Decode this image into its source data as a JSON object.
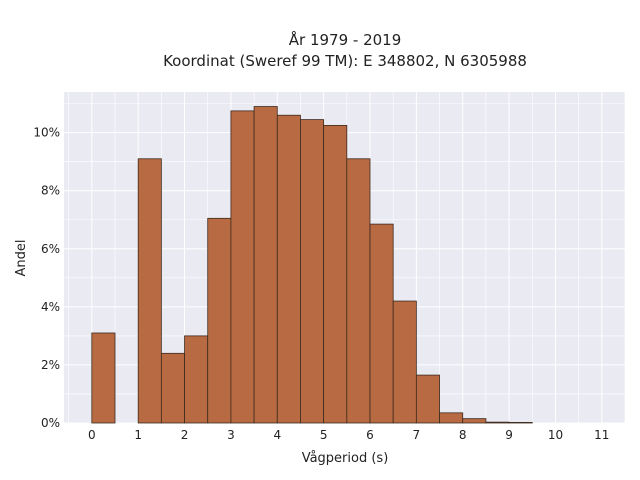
{
  "chart_data": {
    "type": "bar",
    "title_line1": "År 1979 - 2019",
    "title_line2": "Koordinat (Sweref 99 TM): E 348802, N 6305988",
    "xlabel": "Vågperiod (s)",
    "ylabel": "Andel",
    "xlim": [
      -0.6,
      11.5
    ],
    "ylim": [
      0,
      11.4
    ],
    "bin_width": 0.5,
    "xticks": [
      0,
      1,
      2,
      3,
      4,
      5,
      6,
      7,
      8,
      9,
      10,
      11
    ],
    "yticks": [
      0,
      2,
      4,
      6,
      8,
      10
    ],
    "ytick_suffix": "%",
    "bins": [
      {
        "x0": 0.0,
        "value": 3.1
      },
      {
        "x0": 0.5,
        "value": 0.0
      },
      {
        "x0": 1.0,
        "value": 9.1
      },
      {
        "x0": 1.5,
        "value": 2.4
      },
      {
        "x0": 2.0,
        "value": 3.0
      },
      {
        "x0": 2.5,
        "value": 7.05
      },
      {
        "x0": 3.0,
        "value": 10.75
      },
      {
        "x0": 3.5,
        "value": 10.9
      },
      {
        "x0": 4.0,
        "value": 10.6
      },
      {
        "x0": 4.5,
        "value": 10.45
      },
      {
        "x0": 5.0,
        "value": 10.25
      },
      {
        "x0": 5.5,
        "value": 9.1
      },
      {
        "x0": 6.0,
        "value": 6.85
      },
      {
        "x0": 6.5,
        "value": 4.2
      },
      {
        "x0": 7.0,
        "value": 1.65
      },
      {
        "x0": 7.5,
        "value": 0.35
      },
      {
        "x0": 8.0,
        "value": 0.15
      },
      {
        "x0": 8.5,
        "value": 0.03
      },
      {
        "x0": 9.0,
        "value": 0.02
      }
    ],
    "grid": true,
    "colors": {
      "bar_fill": "#b86a42",
      "bar_stroke": "#3d2a1e",
      "plot_bg": "#e9eaf2",
      "grid": "#ffffff"
    }
  }
}
